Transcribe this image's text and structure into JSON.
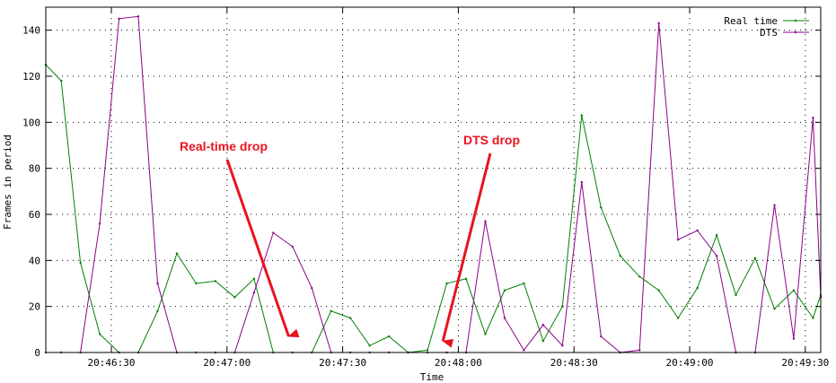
{
  "chart_data": {
    "type": "line",
    "xlabel": "Time",
    "ylabel": "Frames in period",
    "x_tick_labels": [
      "20:46:30",
      "20:47:00",
      "20:47:30",
      "20:48:00",
      "20:48:30",
      "20:49:00",
      "20:49:30"
    ],
    "y_tick_labels": [
      "0",
      "20",
      "40",
      "60",
      "80",
      "100",
      "120",
      "140"
    ],
    "x_start": "20:46:13",
    "x_end": "20:49:34",
    "x_ticks": [
      "20:46:30",
      "20:47:00",
      "20:47:30",
      "20:48:00",
      "20:48:30",
      "20:49:00",
      "20:49:30"
    ],
    "ylim": [
      0,
      150
    ],
    "y_ticks": [
      0,
      20,
      40,
      60,
      80,
      100,
      120,
      140
    ],
    "grid": true,
    "legend_position": "top-right",
    "series": [
      {
        "name": "Real time",
        "color": "#008000",
        "points": [
          [
            "20:46:13",
            125
          ],
          [
            "20:46:17",
            118
          ],
          [
            "20:46:22",
            39
          ],
          [
            "20:46:27",
            8
          ],
          [
            "20:46:32",
            0
          ],
          [
            "20:46:37",
            0
          ],
          [
            "20:46:42",
            18
          ],
          [
            "20:46:47",
            43
          ],
          [
            "20:46:52",
            30
          ],
          [
            "20:46:57",
            31
          ],
          [
            "20:47:02",
            24
          ],
          [
            "20:47:07",
            32
          ],
          [
            "20:47:12",
            0
          ],
          [
            "20:47:17",
            0
          ],
          [
            "20:47:22",
            0
          ],
          [
            "20:47:27",
            18
          ],
          [
            "20:47:32",
            15
          ],
          [
            "20:47:37",
            3
          ],
          [
            "20:47:42",
            7
          ],
          [
            "20:47:47",
            0
          ],
          [
            "20:47:52",
            1
          ],
          [
            "20:47:57",
            30
          ],
          [
            "20:48:02",
            32
          ],
          [
            "20:48:07",
            8
          ],
          [
            "20:48:12",
            27
          ],
          [
            "20:48:17",
            30
          ],
          [
            "20:48:22",
            5
          ],
          [
            "20:48:27",
            20
          ],
          [
            "20:48:32",
            103
          ],
          [
            "20:48:37",
            63
          ],
          [
            "20:48:42",
            42
          ],
          [
            "20:48:47",
            33
          ],
          [
            "20:48:52",
            27
          ],
          [
            "20:48:57",
            15
          ],
          [
            "20:49:02",
            28
          ],
          [
            "20:49:07",
            51
          ],
          [
            "20:49:12",
            25
          ],
          [
            "20:49:17",
            41
          ],
          [
            "20:49:22",
            19
          ],
          [
            "20:49:27",
            27
          ],
          [
            "20:49:32",
            15
          ],
          [
            "20:49:34",
            25
          ]
        ]
      },
      {
        "name": "DTS",
        "color": "#8b008b",
        "points": [
          [
            "20:46:13",
            0
          ],
          [
            "20:46:17",
            0
          ],
          [
            "20:46:22",
            0
          ],
          [
            "20:46:27",
            56
          ],
          [
            "20:46:32",
            145
          ],
          [
            "20:46:37",
            146
          ],
          [
            "20:46:42",
            30
          ],
          [
            "20:46:47",
            0
          ],
          [
            "20:46:52",
            0
          ],
          [
            "20:46:57",
            0
          ],
          [
            "20:47:02",
            0
          ],
          [
            "20:47:07",
            26
          ],
          [
            "20:47:12",
            52
          ],
          [
            "20:47:17",
            46
          ],
          [
            "20:47:22",
            28
          ],
          [
            "20:47:27",
            0
          ],
          [
            "20:47:32",
            0
          ],
          [
            "20:47:37",
            0
          ],
          [
            "20:47:42",
            0
          ],
          [
            "20:47:47",
            0
          ],
          [
            "20:47:52",
            0
          ],
          [
            "20:47:57",
            0
          ],
          [
            "20:48:02",
            0
          ],
          [
            "20:48:07",
            57
          ],
          [
            "20:48:12",
            15
          ],
          [
            "20:48:17",
            1
          ],
          [
            "20:48:22",
            12
          ],
          [
            "20:48:27",
            3
          ],
          [
            "20:48:32",
            74
          ],
          [
            "20:48:37",
            7
          ],
          [
            "20:48:42",
            0
          ],
          [
            "20:48:47",
            1
          ],
          [
            "20:48:52",
            143
          ],
          [
            "20:48:57",
            49
          ],
          [
            "20:49:02",
            53
          ],
          [
            "20:49:07",
            42
          ],
          [
            "20:49:12",
            0
          ],
          [
            "20:49:17",
            0
          ],
          [
            "20:49:22",
            64
          ],
          [
            "20:49:27",
            6
          ],
          [
            "20:49:32",
            102
          ],
          [
            "20:49:34",
            24
          ]
        ]
      }
    ],
    "annotations": [
      {
        "text": "Real-time drop",
        "color": "#e8141e",
        "points_to": [
          "20:47:16",
          7
        ]
      },
      {
        "text": "DTS drop",
        "color": "#e8141e",
        "points_to": [
          "20:47:56",
          5
        ]
      }
    ]
  }
}
